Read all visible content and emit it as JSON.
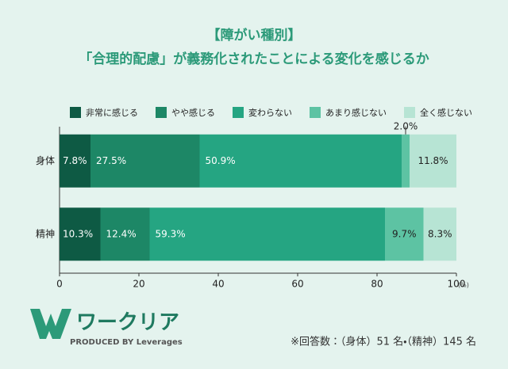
{
  "chart_data": {
    "type": "stacked-barh",
    "title": "【障がい種別】",
    "subtitle": "「合理的配慮」が義務化されたことによる変化を感じるか",
    "categories": [
      "身体",
      "精神"
    ],
    "series": [
      {
        "name": "非常に感じる",
        "color": "#0e5a44",
        "values": [
          7.8,
          10.3
        ],
        "value_labels": [
          "7.8%",
          "10.3%"
        ]
      },
      {
        "name": "やや感じる",
        "color": "#1d8766",
        "values": [
          27.5,
          12.4
        ],
        "value_labels": [
          "27.5%",
          "12.4%"
        ]
      },
      {
        "name": "変わらない",
        "color": "#25a582",
        "values": [
          50.9,
          59.3
        ],
        "value_labels": [
          "50.9%",
          "59.3%"
        ]
      },
      {
        "name": "あまり感じない",
        "color": "#5dc3a3",
        "values": [
          2.0,
          9.7
        ],
        "value_labels": [
          "2.0%",
          "9.7%"
        ]
      },
      {
        "name": "全く感じない",
        "color": "#b7e4d4",
        "values": [
          11.8,
          8.3
        ],
        "value_labels": [
          "11.8%",
          "8.3%"
        ]
      }
    ],
    "xlim": [
      0,
      100
    ],
    "xticks": [
      0,
      20,
      40,
      60,
      80,
      100
    ],
    "xlabel": "(%)",
    "legend": "top"
  },
  "footer": {
    "brand": "ワークリア",
    "tagline": "PRODUCED BY Leverages",
    "note": "※回答数：（身体）51 名・（精神）145 名"
  }
}
